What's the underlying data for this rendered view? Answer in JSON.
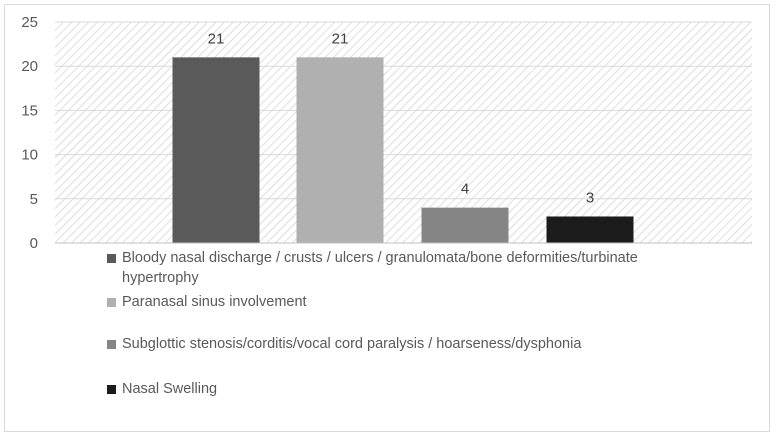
{
  "chart_data": {
    "type": "bar",
    "categories": [
      "Bloody nasal discharge / crusts / ulcers / granulomata/bone deformities/turbinate hypertrophy",
      "Paranasal sinus involvement",
      "Subglottic stenosis/corditis/vocal cord paralysis / hoarseness/dysphonia",
      "Nasal Swelling"
    ],
    "values": [
      21,
      21,
      4,
      3
    ],
    "data_labels": [
      "21",
      "21",
      "4",
      "3"
    ],
    "colors": [
      "#5a5a5a",
      "#b0b0b0",
      "#858585",
      "#1c1c1c"
    ],
    "ylim": [
      0,
      25
    ],
    "yticks": [
      0,
      5,
      10,
      15,
      20,
      25
    ],
    "grid": true,
    "plot_background": "hatched",
    "legend_position": "bottom"
  }
}
